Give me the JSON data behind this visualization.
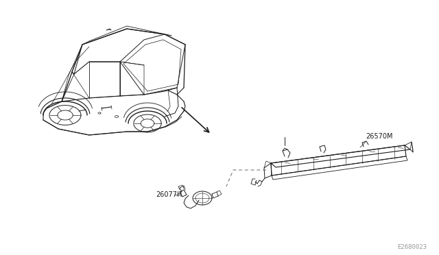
{
  "background_color": "#ffffff",
  "fig_width": 6.4,
  "fig_height": 3.72,
  "dpi": 100,
  "label_26570M": "26570M",
  "label_26077H": "26077H",
  "label_E2680023": "E2680023",
  "label_font_size": 7.0,
  "ref_font_size": 6.5,
  "line_color": "#1a1a1a",
  "dashed_color": "#666666"
}
